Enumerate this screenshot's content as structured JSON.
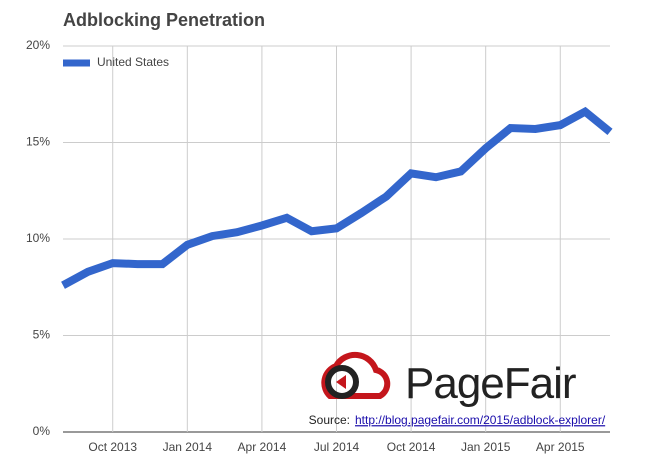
{
  "chart_data": {
    "type": "line",
    "title": "Adblocking Penetration",
    "categories": [
      null,
      null,
      "Oct 2013",
      null,
      null,
      "Jan 2014",
      null,
      null,
      "Apr 2014",
      null,
      null,
      "Jul 2014",
      null,
      null,
      "Oct 2014",
      null,
      null,
      "Jan 2015",
      null,
      null,
      "Apr 2015",
      null,
      null
    ],
    "series": [
      {
        "name": "United States",
        "color": "#3366cc",
        "values": [
          7.6,
          8.3,
          8.75,
          8.7,
          8.7,
          9.7,
          10.15,
          10.35,
          10.7,
          11.1,
          10.4,
          10.55,
          11.35,
          12.2,
          13.4,
          13.2,
          13.5,
          14.7,
          15.75,
          15.7,
          15.9,
          16.6,
          15.55
        ]
      }
    ],
    "ylim": [
      0,
      20
    ],
    "yticks": [
      {
        "value": 0,
        "label": "0%"
      },
      {
        "value": 5,
        "label": "5%"
      },
      {
        "value": 10,
        "label": "10%"
      },
      {
        "value": 15,
        "label": "15%"
      },
      {
        "value": 20,
        "label": "20%"
      }
    ],
    "grid": true,
    "legend": "top-left",
    "logo": "PageFair",
    "source_label": "Source:",
    "source_url": "http://blog.pagefair.com/2015/adblock-explorer/"
  }
}
